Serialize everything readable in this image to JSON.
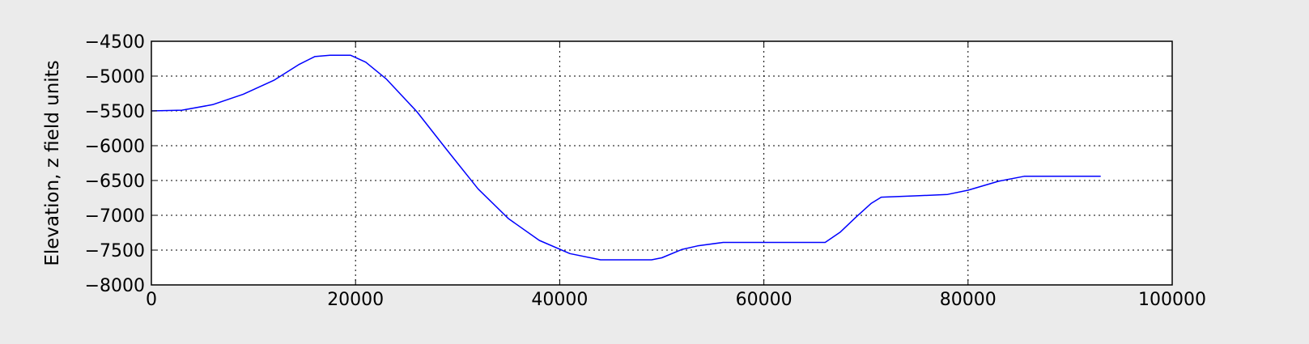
{
  "chart_data": {
    "type": "line",
    "title": "",
    "xlabel": "",
    "ylabel": "Elevation, z field units",
    "xlim": [
      0,
      100000
    ],
    "ylim": [
      -8000,
      -4500
    ],
    "xticks": [
      0,
      20000,
      40000,
      60000,
      80000,
      100000
    ],
    "xtick_labels": [
      "0",
      "20000",
      "40000",
      "60000",
      "80000",
      "100000"
    ],
    "yticks": [
      -4500,
      -5000,
      -5500,
      -6000,
      -6500,
      -7000,
      -7500,
      -8000
    ],
    "ytick_labels": [
      "−4500",
      "−5000",
      "−5500",
      "−6000",
      "−6500",
      "−7000",
      "−7500",
      "−8000"
    ],
    "grid": true,
    "legend": "none",
    "series": [
      {
        "color": "#0000ff",
        "x": [
          0,
          3000,
          6000,
          9000,
          12000,
          14500,
          16000,
          17500,
          19500,
          21000,
          23000,
          26000,
          29000,
          32000,
          35000,
          38000,
          41000,
          44000,
          45000,
          49000,
          50000,
          52000,
          53500,
          56000,
          58000,
          62000,
          65000,
          66000,
          67500,
          69000,
          70500,
          71500,
          75000,
          78000,
          80000,
          83000,
          85500,
          90000,
          93000
        ],
        "y": [
          -5500,
          -5490,
          -5410,
          -5260,
          -5060,
          -4830,
          -4720,
          -4700,
          -4700,
          -4800,
          -5040,
          -5510,
          -6070,
          -6620,
          -7050,
          -7360,
          -7550,
          -7640,
          -7640,
          -7640,
          -7610,
          -7490,
          -7440,
          -7390,
          -7390,
          -7390,
          -7390,
          -7390,
          -7240,
          -7030,
          -6830,
          -6740,
          -6720,
          -6700,
          -6640,
          -6510,
          -6440,
          -6440,
          -6440
        ]
      }
    ]
  }
}
